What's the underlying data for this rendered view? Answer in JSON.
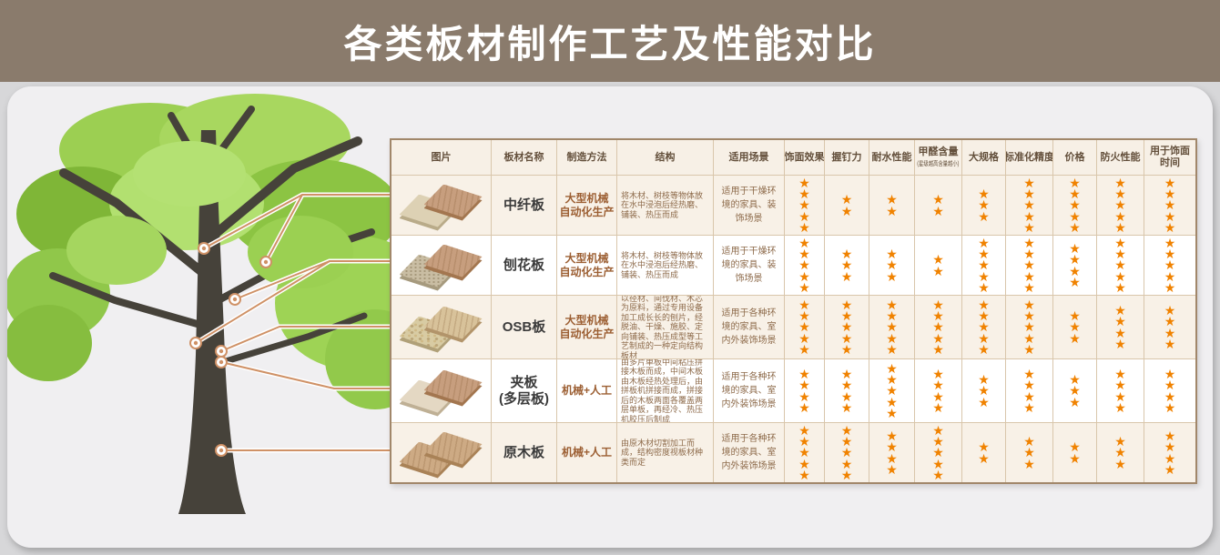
{
  "title": "各类板材制作工艺及性能对比",
  "colors": {
    "header_bar": "#8a7b6c",
    "page_bg": "#d7d7d9",
    "panel_bg": "#f0eff1",
    "table_header_bg": "#f7f0e6",
    "row_alt_bg": "#f8f1e7",
    "grid_border": "#d9c6ab",
    "outer_border": "#a1876a",
    "star": "#f08200",
    "leader_line": "#cf9166",
    "header_text": "#64503c",
    "method_text": "#9c5f33",
    "body_text": "#8d6a4a"
  },
  "table": {
    "headers": [
      {
        "label": "图片"
      },
      {
        "label": "板材名称"
      },
      {
        "label": "制造方法"
      },
      {
        "label": "结构"
      },
      {
        "label": "适用场景"
      },
      {
        "label": "饰面效果"
      },
      {
        "label": "握钉力"
      },
      {
        "label": "耐水性能"
      },
      {
        "label": "甲醛含量",
        "note": "(星级越高含量越小)"
      },
      {
        "label": "大规格"
      },
      {
        "label": "标准化精度"
      },
      {
        "label": "价格"
      },
      {
        "label": "防火性能"
      },
      {
        "label": "用于饰面时间"
      }
    ],
    "rating_columns": [
      "饰面效果",
      "握钉力",
      "耐水性能",
      "甲醛含量",
      "大规格",
      "标准化精度",
      "价格",
      "防火性能",
      "用于饰面时间"
    ],
    "rows": [
      {
        "name_lines": [
          "中纤板"
        ],
        "method_lines": [
          "大型机械",
          "自动化生产"
        ],
        "structure": "将木材、树枝等物体放在水中浸泡后经热磨、铺装、热压而成",
        "scenario": "适用于干燥环境的家具、装饰场景",
        "ratings": [
          5,
          2,
          2,
          2,
          3,
          5,
          5,
          5,
          5
        ],
        "board": {
          "top": {
            "face": "#c79e7e",
            "edge": "#a3764f",
            "texture": "grain"
          },
          "bottom": {
            "face": "#ddd1b4",
            "edge": "#b9ab89",
            "texture": "smooth"
          }
        }
      },
      {
        "name_lines": [
          "刨花板"
        ],
        "method_lines": [
          "大型机械",
          "自动化生产"
        ],
        "structure": "将木材、树枝等物体放在水中浸泡后经热磨、铺装、热压而成",
        "scenario": "适用于干燥环境的家具、装饰场景",
        "ratings": [
          5,
          3,
          3,
          2,
          5,
          5,
          4,
          5,
          5
        ],
        "board": {
          "top": {
            "face": "#c79e7e",
            "edge": "#a3764f",
            "texture": "grain"
          },
          "bottom": {
            "face": "#c9bda3",
            "edge": "#a69a7e",
            "texture": "speckle"
          }
        }
      },
      {
        "name_lines": [
          "OSB板"
        ],
        "method_lines": [
          "大型机械",
          "自动化生产"
        ],
        "structure": "以径材、间伐材、木芯为原料，通过专用设备加工成长长的刨片，经脱油、干燥、施胶、定向铺装、热压成型等工艺制成的一种定向结构板材",
        "scenario": "适用于各种环境的家具、室内外装饰场景",
        "ratings": [
          5,
          5,
          5,
          5,
          5,
          5,
          3,
          4,
          4
        ],
        "board": {
          "top": {
            "face": "#d8c29a",
            "edge": "#b2946a",
            "texture": "grain"
          },
          "bottom": {
            "face": "#d8cba3",
            "edge": "#b0a078",
            "texture": "flake"
          }
        }
      },
      {
        "name_lines": [
          "夹板",
          "(多层板)"
        ],
        "method_lines": [
          "机械+人工"
        ],
        "structure": "由多片单板中间粘压拼接木板而成，中间木板由木板经热处理后，由拼板机拼接而成，拼接后的木板两面各覆盖两层单板，再经冷、热压机胶压后制成",
        "scenario": "适用于各种环境的家具、室内外装饰场景",
        "ratings": [
          4,
          4,
          5,
          4,
          3,
          4,
          3,
          4,
          4
        ],
        "board": {
          "top": {
            "face": "#c79e7e",
            "edge": "#a3764f",
            "texture": "grain"
          },
          "bottom": {
            "face": "#e4d8c3",
            "edge": "#bfb095",
            "texture": "smooth"
          }
        }
      },
      {
        "name_lines": [
          "原木板"
        ],
        "method_lines": [
          "机械+人工"
        ],
        "structure": "由原木材切割加工而成，结构密度视板材种类而定",
        "scenario": "适用于各种环境的家具、室内外装饰场景",
        "ratings": [
          5,
          5,
          4,
          5,
          2,
          3,
          2,
          3,
          4
        ],
        "board": {
          "top": {
            "face": "#cdaa84",
            "edge": "#a98257",
            "texture": "grain"
          },
          "bottom": {
            "face": "#cdaa84",
            "edge": "#a98257",
            "texture": "grain"
          }
        }
      }
    ]
  }
}
